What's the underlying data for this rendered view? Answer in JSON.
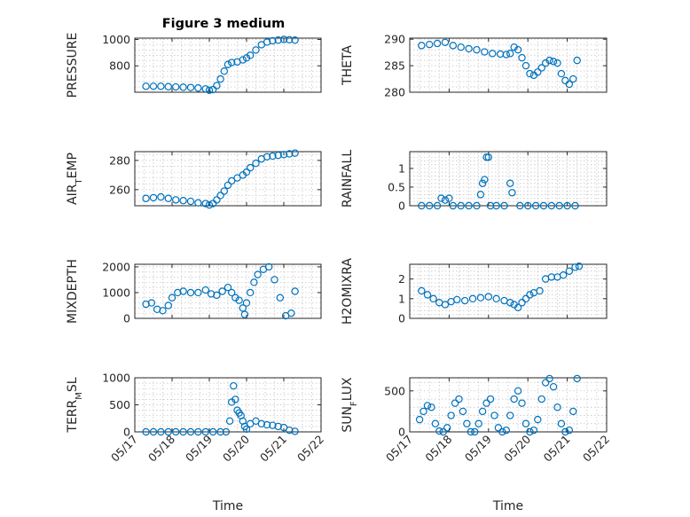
{
  "figure": {
    "title": "Figure 3 medium"
  },
  "colors": {
    "marker": "#0072BD",
    "axis": "#262626",
    "grid": "#bfbfbf"
  },
  "chart_data": [
    {
      "type": "scatter",
      "ylabel": "PRESSURE",
      "xlabel": "",
      "ylim": [
        600,
        1010
      ],
      "yticks": [
        800,
        1000
      ],
      "yticklabels": [
        "800",
        "1000"
      ],
      "xlim": [
        17,
        22
      ],
      "xticks": [
        17,
        18,
        19,
        20,
        21,
        22
      ],
      "xticklabels": [],
      "grid": true,
      "marker": "circle",
      "x": [
        17.3,
        17.5,
        17.7,
        17.9,
        18.1,
        18.3,
        18.5,
        18.7,
        18.9,
        19.0,
        19.1,
        19.2,
        19.3,
        19.4,
        19.5,
        19.6,
        19.75,
        19.9,
        20.0,
        20.1,
        20.25,
        20.4,
        20.55,
        20.7,
        20.85,
        21.0,
        21.15,
        21.3
      ],
      "y": [
        645,
        645,
        645,
        642,
        640,
        638,
        636,
        632,
        625,
        615,
        620,
        650,
        700,
        760,
        810,
        825,
        830,
        845,
        860,
        880,
        920,
        960,
        980,
        990,
        995,
        1000,
        998,
        995
      ]
    },
    {
      "type": "scatter",
      "ylabel": "THETA",
      "xlabel": "",
      "ylim": [
        280,
        290.2
      ],
      "yticks": [
        280,
        285,
        290
      ],
      "yticklabels": [
        "280",
        "285",
        "290"
      ],
      "xlim": [
        17,
        22
      ],
      "xticks": [
        17,
        18,
        19,
        20,
        21,
        22
      ],
      "xticklabels": [],
      "grid": true,
      "marker": "circle",
      "x": [
        17.3,
        17.5,
        17.7,
        17.9,
        18.1,
        18.3,
        18.5,
        18.7,
        18.9,
        19.1,
        19.3,
        19.45,
        19.55,
        19.65,
        19.75,
        19.85,
        19.95,
        20.05,
        20.15,
        20.25,
        20.35,
        20.45,
        20.55,
        20.65,
        20.75,
        20.85,
        20.95,
        21.05,
        21.15,
        21.25
      ],
      "y": [
        288.8,
        289,
        289.2,
        289.4,
        288.8,
        288.5,
        288.2,
        288,
        287.6,
        287.3,
        287.2,
        287.1,
        287.3,
        288.5,
        288,
        286.5,
        285,
        283.5,
        283.2,
        283.8,
        284.6,
        285.5,
        286,
        285.8,
        285.5,
        283.5,
        282.2,
        281.5,
        282.5,
        286
      ]
    },
    {
      "type": "scatter",
      "ylabel": "AIR_TEMP",
      "xlabel": "",
      "ylim": [
        249,
        286
      ],
      "yticks": [
        260,
        280
      ],
      "yticklabels": [
        "260",
        "280"
      ],
      "xlim": [
        17,
        22
      ],
      "xticks": [
        17,
        18,
        19,
        20,
        21,
        22
      ],
      "xticklabels": [],
      "grid": true,
      "marker": "circle",
      "x": [
        17.3,
        17.5,
        17.7,
        17.9,
        18.1,
        18.3,
        18.5,
        18.7,
        18.9,
        19.0,
        19.1,
        19.2,
        19.3,
        19.4,
        19.5,
        19.6,
        19.75,
        19.9,
        20.0,
        20.1,
        20.25,
        20.4,
        20.55,
        20.7,
        20.85,
        21.0,
        21.15,
        21.3
      ],
      "y": [
        254,
        254.5,
        255,
        254,
        253,
        252.5,
        252,
        251,
        250.5,
        249.5,
        250.5,
        253,
        256,
        259,
        263,
        266,
        268,
        270,
        272,
        275,
        278,
        281,
        282.5,
        283,
        283.5,
        284,
        284.5,
        285
      ]
    },
    {
      "type": "scatter",
      "ylabel": "RAINFALL",
      "xlabel": "",
      "ylim": [
        0,
        1.45
      ],
      "yticks": [
        0,
        0.5,
        1
      ],
      "yticklabels": [
        "0",
        "0.5",
        "1"
      ],
      "xlim": [
        17,
        22
      ],
      "xticks": [
        17,
        18,
        19,
        20,
        21,
        22
      ],
      "xticklabels": [],
      "grid": true,
      "marker": "circle",
      "x": [
        17.3,
        17.5,
        17.7,
        17.8,
        17.9,
        18.0,
        18.1,
        18.3,
        18.5,
        18.7,
        18.8,
        18.85,
        18.9,
        18.95,
        19.0,
        19.05,
        19.2,
        19.4,
        19.55,
        19.6,
        19.8,
        20.0,
        20.2,
        20.4,
        20.6,
        20.8,
        21.0,
        21.2
      ],
      "y": [
        0,
        0,
        0,
        0.2,
        0.15,
        0.2,
        0,
        0,
        0,
        0,
        0.3,
        0.6,
        0.7,
        1.3,
        1.3,
        0,
        0,
        0,
        0.6,
        0.35,
        0,
        0,
        0,
        0,
        0,
        0,
        0,
        0
      ]
    },
    {
      "type": "scatter",
      "ylabel": "MIXDEPTH",
      "xlabel": "",
      "ylim": [
        0,
        2100
      ],
      "yticks": [
        0,
        1000,
        2000
      ],
      "yticklabels": [
        "0",
        "1000",
        "2000"
      ],
      "xlim": [
        17,
        22
      ],
      "xticks": [
        17,
        18,
        19,
        20,
        21,
        22
      ],
      "xticklabels": [],
      "grid": true,
      "marker": "circle",
      "x": [
        17.3,
        17.45,
        17.6,
        17.75,
        17.9,
        18.0,
        18.15,
        18.3,
        18.5,
        18.7,
        18.9,
        19.05,
        19.2,
        19.35,
        19.5,
        19.6,
        19.7,
        19.8,
        19.9,
        19.95,
        20.0,
        20.1,
        20.2,
        20.3,
        20.45,
        20.6,
        20.75,
        20.9,
        21.05,
        21.2,
        21.3
      ],
      "y": [
        550,
        600,
        350,
        300,
        500,
        800,
        1000,
        1050,
        1000,
        1000,
        1100,
        950,
        900,
        1050,
        1200,
        1000,
        800,
        700,
        400,
        150,
        600,
        1000,
        1400,
        1700,
        1900,
        2000,
        1500,
        800,
        100,
        200,
        1050
      ]
    },
    {
      "type": "scatter",
      "ylabel": "H2OMIXRA",
      "xlabel": "",
      "ylim": [
        0,
        2.75
      ],
      "yticks": [
        0,
        1,
        2
      ],
      "yticklabels": [
        "0",
        "1",
        "2"
      ],
      "xlim": [
        17,
        22
      ],
      "xticks": [
        17,
        18,
        19,
        20,
        21,
        22
      ],
      "xticklabels": [],
      "grid": true,
      "marker": "circle",
      "x": [
        17.3,
        17.45,
        17.6,
        17.75,
        17.9,
        18.05,
        18.2,
        18.4,
        18.6,
        18.8,
        19.0,
        19.2,
        19.4,
        19.55,
        19.65,
        19.75,
        19.85,
        19.95,
        20.05,
        20.15,
        20.3,
        20.45,
        20.6,
        20.75,
        20.9,
        21.05,
        21.2,
        21.3
      ],
      "y": [
        1.4,
        1.2,
        1.0,
        0.8,
        0.7,
        0.85,
        0.95,
        0.9,
        1.0,
        1.05,
        1.1,
        1.0,
        0.9,
        0.8,
        0.7,
        0.55,
        0.8,
        1.0,
        1.2,
        1.3,
        1.4,
        2.0,
        2.1,
        2.1,
        2.2,
        2.4,
        2.6,
        2.65
      ]
    },
    {
      "type": "scatter",
      "ylabel": "TERR_MSL",
      "xlabel": "Time",
      "ylim": [
        0,
        1000
      ],
      "yticks": [
        0,
        500,
        1000
      ],
      "yticklabels": [
        "0",
        "500",
        "1000"
      ],
      "xlim": [
        17,
        22
      ],
      "xticks": [
        17,
        18,
        19,
        20,
        21,
        22
      ],
      "xticklabels": [
        "05/17",
        "05/18",
        "05/19",
        "05/20",
        "05/21",
        "05/22"
      ],
      "grid": true,
      "marker": "circle",
      "x": [
        17.3,
        17.5,
        17.7,
        17.9,
        18.1,
        18.3,
        18.5,
        18.7,
        18.9,
        19.1,
        19.3,
        19.45,
        19.55,
        19.6,
        19.65,
        19.7,
        19.75,
        19.8,
        19.85,
        19.9,
        19.95,
        20.0,
        20.1,
        20.25,
        20.4,
        20.55,
        20.7,
        20.85,
        21.0,
        21.15,
        21.3
      ],
      "y": [
        0,
        0,
        0,
        0,
        0,
        0,
        0,
        0,
        0,
        0,
        0,
        0,
        200,
        550,
        850,
        600,
        400,
        350,
        300,
        200,
        100,
        50,
        150,
        200,
        150,
        130,
        120,
        100,
        80,
        30,
        10
      ]
    },
    {
      "type": "scatter",
      "ylabel": "SUN_FLUX",
      "xlabel": "Time",
      "ylim": [
        0,
        660
      ],
      "yticks": [
        0,
        500
      ],
      "yticklabels": [
        "0",
        "500"
      ],
      "xlim": [
        17,
        22
      ],
      "xticks": [
        17,
        18,
        19,
        20,
        21,
        22
      ],
      "xticklabels": [
        "05/17",
        "05/18",
        "05/19",
        "05/20",
        "05/21",
        "05/22"
      ],
      "grid": true,
      "marker": "circle",
      "x": [
        17.25,
        17.35,
        17.45,
        17.55,
        17.65,
        17.75,
        17.85,
        17.95,
        18.05,
        18.15,
        18.25,
        18.35,
        18.45,
        18.55,
        18.65,
        18.75,
        18.85,
        18.95,
        19.05,
        19.15,
        19.25,
        19.35,
        19.45,
        19.55,
        19.65,
        19.75,
        19.85,
        19.95,
        20.05,
        20.15,
        20.25,
        20.35,
        20.45,
        20.55,
        20.65,
        20.75,
        20.85,
        20.95,
        21.05,
        21.15,
        21.25
      ],
      "y": [
        150,
        250,
        320,
        300,
        100,
        10,
        0,
        50,
        200,
        350,
        400,
        250,
        100,
        0,
        0,
        100,
        250,
        350,
        400,
        200,
        50,
        0,
        20,
        200,
        400,
        500,
        350,
        100,
        0,
        20,
        150,
        400,
        600,
        650,
        550,
        300,
        100,
        0,
        20,
        250,
        650
      ]
    }
  ]
}
